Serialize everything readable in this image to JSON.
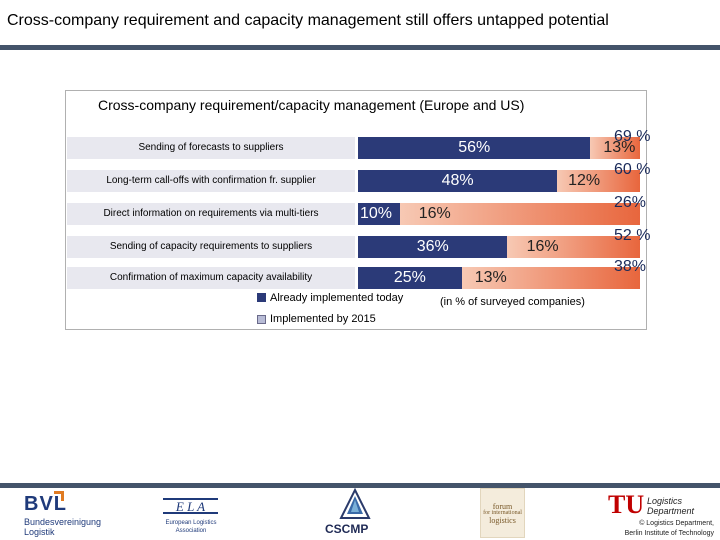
{
  "slide": {
    "title": "Cross-company requirement and capacity management still offers untapped potential"
  },
  "chart_data": {
    "type": "bar",
    "stacked": true,
    "orientation": "horizontal",
    "title": "Cross-company requirement/capacity management (Europe and US)",
    "categories": [
      "Sending of forecasts to suppliers",
      "Long-term call-offs with confirmation fr. supplier",
      "Direct information on requirements via multi-tiers",
      "Sending of capacity requirements to suppliers",
      "Confirmation of maximum capacity availability"
    ],
    "series": [
      {
        "name": "Already implemented today",
        "color": "#2b3a78",
        "values": [
          56,
          48,
          10,
          36,
          25
        ],
        "labels": [
          "56%",
          "48%",
          "10%",
          "36%",
          "25%"
        ]
      },
      {
        "name": "Implemented by 2015",
        "color": "#e8663d",
        "values": [
          13,
          12,
          16,
          16,
          13
        ],
        "labels": [
          "13%",
          "12%",
          "16%",
          "16%",
          "13%"
        ]
      }
    ],
    "totals": [
      69,
      60,
      26,
      52,
      38
    ],
    "total_labels": [
      "69 %",
      "60 %",
      "26%",
      "52 %",
      "38%"
    ],
    "xlim": [
      0,
      100
    ],
    "note": "(in % of surveyed companies)"
  },
  "footer": {
    "bvl": {
      "name": "BVL",
      "sub1": "Bundesvereinigung",
      "sub2": "Logistik"
    },
    "ela": {
      "name": "E L A",
      "sub1": "European Logistics",
      "sub2": "Association"
    },
    "cscmp": {
      "name": "CSCMP"
    },
    "forum": {
      "line1": "forum",
      "line2": "for international",
      "line3": "logistics"
    },
    "tu": {
      "mark": "TU",
      "dept1": "Logistics",
      "dept2": "Department",
      "copy1": "© Logistics Department,",
      "copy2": "Berlin Institute of Technology"
    }
  }
}
